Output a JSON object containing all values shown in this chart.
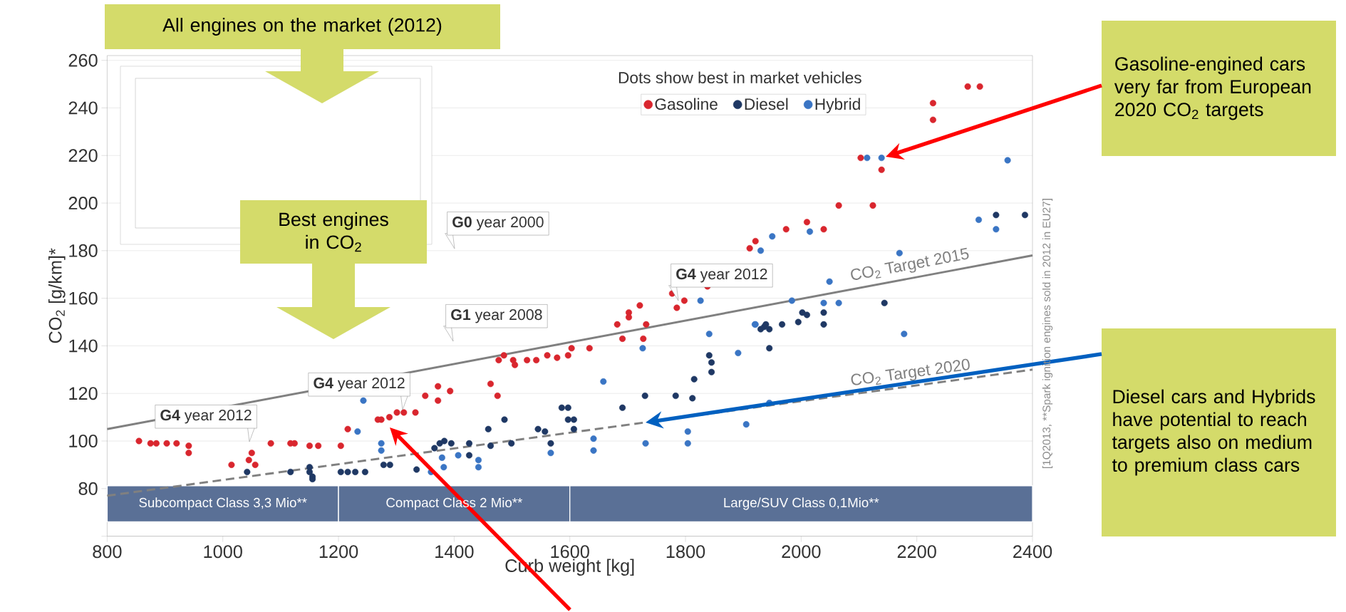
{
  "chart_data": {
    "type": "scatter",
    "xlabel": "Curb weight [kg]",
    "ylabel": "CO$_{2}$ [g/km]*",
    "legend_title": "Dots show best in market vehicles",
    "xlim": [
      800,
      2400
    ],
    "ylim": [
      60,
      262
    ],
    "xticks": [
      800,
      1000,
      1200,
      1400,
      1600,
      1800,
      2000,
      2200,
      2400
    ],
    "yticks": [
      {
        "value": 60,
        "label": null
      },
      80,
      100,
      120,
      140,
      160,
      180,
      200,
      220,
      240,
      260
    ],
    "grid": "y",
    "legend": "top right",
    "series": [
      {
        "name": "Gasoline",
        "color": "#d9262e",
        "marker": "circle",
        "x": [
          855,
          875,
          885,
          903,
          920,
          941,
          941,
          1015,
          1045,
          1050,
          1056,
          1083,
          1117,
          1124,
          1150,
          1165,
          1204,
          1216,
          1268,
          1274,
          1288,
          1301,
          1313,
          1333,
          1350,
          1372,
          1372,
          1393,
          1463,
          1475,
          1477,
          1486,
          1502,
          1505,
          1526,
          1542,
          1561,
          1578,
          1597,
          1603,
          1634,
          1682,
          1691,
          1702,
          1702,
          1721,
          1727,
          1732,
          1777,
          1785,
          1798,
          1838,
          1911,
          1921,
          1974,
          2010,
          2039,
          2065,
          2103,
          2124,
          2139,
          2228,
          2228,
          2288,
          2309
        ],
        "values": [
          100,
          99,
          99,
          99,
          99,
          98,
          95,
          90,
          92,
          95,
          90,
          99,
          99,
          99,
          98,
          98,
          98,
          105,
          109,
          109,
          110,
          112,
          112,
          112,
          119,
          123,
          117,
          121,
          124,
          119,
          134,
          136,
          134,
          132,
          134,
          134,
          136,
          135,
          136,
          139,
          139,
          149,
          143,
          154,
          152,
          157,
          143,
          149,
          162,
          156,
          159,
          165,
          181,
          184,
          189,
          192,
          189,
          199,
          219,
          199,
          214,
          242,
          235,
          249,
          249
        ]
      },
      {
        "name": "Diesel",
        "color": "#1f3864",
        "marker": "circle",
        "x": [
          1042,
          1117,
          1150,
          1150,
          1155,
          1155,
          1204,
          1216,
          1229,
          1246,
          1278,
          1289,
          1335,
          1366,
          1375,
          1383,
          1395,
          1426,
          1426,
          1459,
          1463,
          1487,
          1499,
          1545,
          1557,
          1567,
          1586,
          1597,
          1597,
          1607,
          1607,
          1691,
          1730,
          1783,
          1812,
          1815,
          1841,
          1845,
          1845,
          1930,
          1936,
          1939,
          1945,
          1945,
          1967,
          1995,
          2002,
          2010,
          2039,
          2039,
          2144,
          2337,
          2387
        ],
        "values": [
          87,
          87,
          89,
          87,
          85,
          84,
          87,
          87,
          87,
          87,
          90,
          90,
          88,
          97,
          99,
          100,
          99,
          99,
          94,
          105,
          98,
          109,
          99,
          105,
          104,
          99,
          114,
          114,
          109,
          109,
          105,
          114,
          119,
          119,
          118,
          126,
          136,
          133,
          129,
          147,
          148,
          149,
          147,
          139,
          149,
          150,
          154,
          153,
          154,
          149,
          158,
          195,
          195
        ]
      },
      {
        "name": "Hybrid",
        "color": "#3a75c4",
        "marker": "circle",
        "x": [
          1233,
          1243,
          1274,
          1274,
          1360,
          1379,
          1382,
          1407,
          1442,
          1442,
          1567,
          1641,
          1641,
          1658,
          1726,
          1731,
          1804,
          1804,
          1826,
          1841,
          1891,
          1905,
          1920,
          1921,
          1930,
          1945,
          1950,
          1984,
          2015,
          2039,
          2049,
          2065,
          2114,
          2139,
          2170,
          2178,
          2307,
          2337,
          2357
        ],
        "values": [
          104,
          117,
          99,
          96,
          87,
          93,
          89,
          94,
          92,
          89,
          95,
          101,
          96,
          125,
          139,
          99,
          104,
          99,
          159,
          145,
          137,
          107,
          149,
          149,
          180,
          116,
          186,
          159,
          188,
          158,
          167,
          158,
          219,
          219,
          179,
          145,
          193,
          189,
          218
        ]
      },
      {
        "name": "CO$_{2}$ Target 2015",
        "type": "line",
        "color": "#808080",
        "line_style": "solid",
        "marker": "none",
        "x": [
          800,
          2400
        ],
        "values": [
          105,
          178
        ]
      },
      {
        "name": "CO$_{2}$ Target 2020",
        "type": "line",
        "color": "#808080",
        "line_style": "dashed",
        "marker": "none",
        "x": [
          800,
          2400
        ],
        "values": [
          77,
          130
        ]
      }
    ],
    "bands": [
      {
        "axis": "x",
        "from": 800,
        "to": 1200,
        "label": "Subcompact Class 3,3 Mio**",
        "color": "#5a7096"
      },
      {
        "axis": "x",
        "from": 1200,
        "to": 1600,
        "label": "Compact Class 2 Mio**",
        "color": "#5a7096"
      },
      {
        "axis": "x",
        "from": 1600,
        "to": 2400,
        "label": "Large/SUV Class 0,1Mio**",
        "color": "#5a7096"
      }
    ],
    "annotations": [
      "All engines on the market (2012)",
      "Best engines in CO$_{2}$",
      "Gasoline-engined cars very far from European 2020 CO$_{2}$ targets",
      "Diesel cars and Hybrids have potential to reach targets also on medium to premium class cars",
      "**G0** year 2000",
      "**G1** year 2008",
      "**G4** year 2012",
      "**G4** year 2012",
      "**G4** year 2012",
      "[1Q2013, **Spark ignition engines sold in 2012 in EU27]"
    ]
  }
}
